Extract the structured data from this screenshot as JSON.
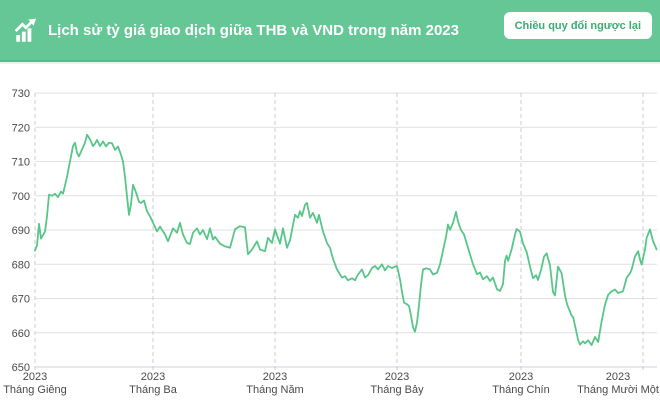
{
  "header": {
    "title": "Lịch sử tỷ giá giao dịch giữa THB và VND trong năm 2023",
    "reverse_button_label": "Chiều quy đổi ngược lại",
    "icon": "trending-up-chart-icon",
    "colors": {
      "background": "#64c795",
      "border_bottom": "#57ba89",
      "title_text": "#ffffff",
      "button_bg": "#fdfffd",
      "button_text": "#3dab77"
    }
  },
  "chart_data": {
    "type": "line",
    "x_unit": "day_of_year_2023",
    "xlim_days": [
      0,
      311
    ],
    "ylim": [
      650,
      730
    ],
    "grid": true,
    "legend_position": "none",
    "y_ticks": [
      650,
      660,
      670,
      680,
      690,
      700,
      710,
      720,
      730
    ],
    "x_ticks": [
      {
        "day": 0,
        "year": "2023",
        "month": "Tháng Giêng"
      },
      {
        "day": 59,
        "year": "2023",
        "month": "Tháng Ba"
      },
      {
        "day": 120,
        "year": "2023",
        "month": "Tháng Năm"
      },
      {
        "day": 181,
        "year": "2023",
        "month": "Tháng Bảy"
      },
      {
        "day": 243,
        "year": "2023",
        "month": "Tháng Chín"
      },
      {
        "day": 304,
        "year": "2023",
        "month": "Tháng Mười Một"
      }
    ],
    "style": {
      "line_color": "#58c689",
      "grid_line": "#e1e1e1",
      "axis_line": "#ccd2dc",
      "tick_line": "#cccccc",
      "label_color": "#4a4a4a"
    },
    "series": [
      {
        "color": "#58c689",
        "points": [
          [
            0,
            684
          ],
          [
            1,
            685.5
          ],
          [
            2,
            691.8
          ],
          [
            3,
            687.5
          ],
          [
            4,
            688.5
          ],
          [
            5,
            689.5
          ],
          [
            6,
            694
          ],
          [
            7,
            700.3
          ],
          [
            8.5,
            700
          ],
          [
            10,
            700.6
          ],
          [
            11.5,
            699.6
          ],
          [
            13,
            701.2
          ],
          [
            14,
            700.6
          ],
          [
            15,
            703
          ],
          [
            16,
            705.5
          ],
          [
            17,
            708.6
          ],
          [
            18,
            711.5
          ],
          [
            19,
            714.5
          ],
          [
            20,
            715.5
          ],
          [
            21,
            712.5
          ],
          [
            22,
            711.5
          ],
          [
            23.5,
            713.5
          ],
          [
            25,
            715.5
          ],
          [
            26,
            717.8
          ],
          [
            27.5,
            716.5
          ],
          [
            29,
            714.5
          ],
          [
            30,
            715.2
          ],
          [
            31,
            716.3
          ],
          [
            32.5,
            714.5
          ],
          [
            34,
            715.9
          ],
          [
            35.5,
            714.4
          ],
          [
            37,
            715.5
          ],
          [
            38.5,
            715.3
          ],
          [
            40,
            713.4
          ],
          [
            41.5,
            714.4
          ],
          [
            43,
            712
          ],
          [
            44,
            710
          ],
          [
            45,
            705.5
          ],
          [
            46,
            699.8
          ],
          [
            47,
            694.4
          ],
          [
            48,
            697.5
          ],
          [
            49,
            703.2
          ],
          [
            50.5,
            701
          ],
          [
            52,
            698.2
          ],
          [
            53,
            697.9
          ],
          [
            54.5,
            698.6
          ],
          [
            56,
            695.5
          ],
          [
            57.5,
            694
          ],
          [
            59,
            692.1
          ],
          [
            61,
            689.6
          ],
          [
            62.5,
            691
          ],
          [
            65,
            688.7
          ],
          [
            66.5,
            686.7
          ],
          [
            69,
            690.5
          ],
          [
            71,
            689.2
          ],
          [
            72.5,
            692.1
          ],
          [
            74,
            688.7
          ],
          [
            76,
            686.2
          ],
          [
            77.5,
            685.9
          ],
          [
            79,
            689.2
          ],
          [
            81,
            690.5
          ],
          [
            82.5,
            688.7
          ],
          [
            84,
            690
          ],
          [
            86,
            687.3
          ],
          [
            87.5,
            690.5
          ],
          [
            89,
            687.2
          ],
          [
            90,
            688
          ],
          [
            92.5,
            686
          ],
          [
            95,
            685.2
          ],
          [
            97.5,
            684.8
          ],
          [
            100,
            690.2
          ],
          [
            102.5,
            691.1
          ],
          [
            105,
            690.8
          ],
          [
            106.5,
            682.9
          ],
          [
            108.5,
            684.3
          ],
          [
            111,
            686.7
          ],
          [
            112.5,
            684.3
          ],
          [
            115,
            683.8
          ],
          [
            116.5,
            687.7
          ],
          [
            118.5,
            686.2
          ],
          [
            120,
            690.2
          ],
          [
            122.5,
            686
          ],
          [
            124,
            690.5
          ],
          [
            126,
            684.8
          ],
          [
            127.5,
            687
          ],
          [
            130,
            694.4
          ],
          [
            131.5,
            693.6
          ],
          [
            132.5,
            695.5
          ],
          [
            133.5,
            694.1
          ],
          [
            135,
            697.3
          ],
          [
            136,
            697.9
          ],
          [
            137.5,
            693.6
          ],
          [
            139,
            695
          ],
          [
            141,
            692.1
          ],
          [
            142,
            694.4
          ],
          [
            144,
            689.6
          ],
          [
            146,
            686.2
          ],
          [
            147.5,
            684.8
          ],
          [
            149,
            681.6
          ],
          [
            151,
            678.5
          ],
          [
            153.5,
            676.1
          ],
          [
            155,
            676.5
          ],
          [
            156.5,
            675.3
          ],
          [
            158.5,
            675.9
          ],
          [
            160,
            675.3
          ],
          [
            161.5,
            677
          ],
          [
            163.5,
            678.5
          ],
          [
            165,
            676.1
          ],
          [
            166.5,
            676.8
          ],
          [
            168.5,
            678.9
          ],
          [
            170,
            679.5
          ],
          [
            171.5,
            678.5
          ],
          [
            173.5,
            680
          ],
          [
            175,
            678.2
          ],
          [
            176.5,
            679.5
          ],
          [
            178.5,
            678.9
          ],
          [
            180,
            679.3
          ],
          [
            181,
            679.5
          ],
          [
            182.5,
            675.6
          ],
          [
            183.5,
            672
          ],
          [
            184.5,
            668.8
          ],
          [
            186,
            668.3
          ],
          [
            187,
            667.8
          ],
          [
            188,
            665
          ],
          [
            189,
            661.6
          ],
          [
            190,
            660.3
          ],
          [
            191,
            663
          ],
          [
            192,
            668
          ],
          [
            193,
            674
          ],
          [
            194,
            678.5
          ],
          [
            195.5,
            678.8
          ],
          [
            197.5,
            678.5
          ],
          [
            199,
            677
          ],
          [
            201,
            677.5
          ],
          [
            202.5,
            680
          ],
          [
            204,
            684
          ],
          [
            205.5,
            688
          ],
          [
            206.5,
            691.6
          ],
          [
            207.5,
            690
          ],
          [
            209,
            692.1
          ],
          [
            210.5,
            695.3
          ],
          [
            211.5,
            692.5
          ],
          [
            213,
            690
          ],
          [
            214.5,
            688.7
          ],
          [
            216.5,
            684.8
          ],
          [
            219,
            680
          ],
          [
            221,
            677.1
          ],
          [
            222.5,
            677.6
          ],
          [
            224,
            675.6
          ],
          [
            226,
            676.5
          ],
          [
            227.5,
            675.1
          ],
          [
            229,
            676.1
          ],
          [
            231,
            672.7
          ],
          [
            232.5,
            672.2
          ],
          [
            234,
            674.2
          ],
          [
            235,
            681
          ],
          [
            235.8,
            682.5
          ],
          [
            236.6,
            681
          ],
          [
            238.3,
            684.3
          ],
          [
            240,
            688.7
          ],
          [
            240.8,
            690.3
          ],
          [
            242.5,
            689.5
          ],
          [
            244,
            686.1
          ],
          [
            245.8,
            683.6
          ],
          [
            247.5,
            679.3
          ],
          [
            249,
            675.9
          ],
          [
            250.5,
            676.8
          ],
          [
            251.5,
            675.4
          ],
          [
            253,
            678.3
          ],
          [
            254.5,
            682.2
          ],
          [
            255.8,
            683.2
          ],
          [
            257.5,
            679.7
          ],
          [
            259,
            671.9
          ],
          [
            260,
            670.9
          ],
          [
            261.5,
            679.3
          ],
          [
            263.3,
            677.4
          ],
          [
            265,
            670.9
          ],
          [
            266,
            668.4
          ],
          [
            268.3,
            665
          ],
          [
            269.1,
            664.5
          ],
          [
            270,
            662.1
          ],
          [
            271.6,
            657.8
          ],
          [
            272.5,
            656.5
          ],
          [
            274,
            657.5
          ],
          [
            275,
            656.9
          ],
          [
            276.6,
            657.8
          ],
          [
            278.3,
            656.4
          ],
          [
            280,
            658.8
          ],
          [
            281.6,
            657.3
          ],
          [
            283.3,
            663.3
          ],
          [
            285,
            668.2
          ],
          [
            286.6,
            671.1
          ],
          [
            288.3,
            672.1
          ],
          [
            290,
            672.6
          ],
          [
            291.6,
            671.6
          ],
          [
            294,
            672.1
          ],
          [
            295.8,
            676
          ],
          [
            297.5,
            677.4
          ],
          [
            298.3,
            678.4
          ],
          [
            300,
            682.3
          ],
          [
            301.6,
            683.8
          ],
          [
            302.5,
            681.4
          ],
          [
            303.3,
            679.9
          ],
          [
            305,
            684.3
          ],
          [
            305.8,
            687.7
          ],
          [
            307.5,
            690.2
          ],
          [
            309,
            686.8
          ],
          [
            310.8,
            684.3
          ]
        ]
      }
    ]
  }
}
